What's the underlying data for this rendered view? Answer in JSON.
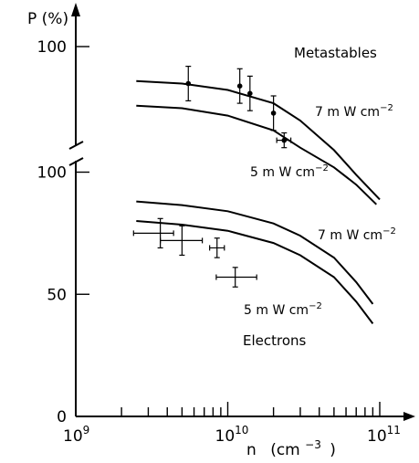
{
  "chart_data": {
    "type": "scatter",
    "xscale": "log",
    "ylabel": "P (%)",
    "xlabel_base": "n",
    "xlabel_unit": "(cm",
    "xlabel_exp": "−3",
    "xlabel_close": ")",
    "xlim": [
      1000000000.0,
      100000000000.0
    ],
    "x_ticks": [
      {
        "base": "10",
        "exp": "9",
        "value": 1000000000.0
      },
      {
        "base": "10",
        "exp": "10",
        "value": 10000000000.0
      },
      {
        "base": "10",
        "exp": "11",
        "value": 100000000000.0
      }
    ],
    "lower_panel": {
      "y_ticks": [
        {
          "label": "0",
          "value": 0
        },
        {
          "label": "50",
          "value": 50
        },
        {
          "label": "100",
          "value": 100
        }
      ],
      "ylim": [
        0,
        100
      ]
    },
    "upper_panel": {
      "y_ticks": [
        {
          "label": "100",
          "value": 100
        }
      ],
      "ylim": [
        72,
        107
      ],
      "axis_break": true
    },
    "panels": [
      {
        "name": "Metastables",
        "panel": "upper",
        "points": [
          {
            "x": 5500000000.0,
            "y": 92.5,
            "yerr": 3.5
          },
          {
            "x": 12000000000.0,
            "y": 92,
            "yerr": 3.5
          },
          {
            "x": 14000000000.0,
            "y": 90.5,
            "yerr": 3.5
          },
          {
            "x": 20000000000.0,
            "y": 86.5,
            "yerr": 3.5
          },
          {
            "x": 23500000000.0,
            "y": 81,
            "yerr": 1.5,
            "xerr": [
              21000000000.0,
              26000000000.0
            ]
          }
        ],
        "curves": [
          {
            "label_pre": "7 m W cm",
            "label_exp": "−2",
            "x": [
              2500000000.0,
              5000000000.0,
              10000000000.0,
              20000000000.0,
              30000000000.0,
              50000000000.0,
              70000000000.0,
              100000000000.0
            ],
            "y": [
              93,
              92.5,
              91.2,
              88.5,
              85,
              79,
              74,
              69
            ]
          },
          {
            "label_pre": "5 m W cm",
            "label_exp": "−2",
            "x": [
              2500000000.0,
              5000000000.0,
              10000000000.0,
              20000000000.0,
              30000000000.0,
              50000000000.0,
              70000000000.0,
              95000000000.0
            ],
            "y": [
              88,
              87.5,
              86,
              83,
              79.5,
              75.5,
              72,
              68
            ]
          }
        ]
      },
      {
        "name": "Electrons",
        "panel": "lower",
        "points": [
          {
            "x": 3600000000.0,
            "y": 75,
            "xerr": [
              2400000000.0,
              4400000000.0
            ],
            "yerr": 6
          },
          {
            "x": 5000000000.0,
            "y": 72,
            "xerr": [
              3600000000.0,
              6800000000.0
            ],
            "yerr": 6
          },
          {
            "x": 8500000000.0,
            "y": 69,
            "xerr": [
              7600000000.0,
              9500000000.0
            ],
            "yerr": 4
          },
          {
            "x": 11200000000.0,
            "y": 57,
            "xerr": [
              8400000000.0,
              15500000000.0
            ],
            "yerr": 4
          }
        ],
        "curves": [
          {
            "label_pre": "7 m W cm",
            "label_exp": "−2",
            "x": [
              2500000000.0,
              5000000000.0,
              10000000000.0,
              20000000000.0,
              30000000000.0,
              50000000000.0,
              70000000000.0,
              90000000000.0
            ],
            "y": [
              88,
              86.5,
              84,
              79,
              74,
              65,
              55,
              46
            ]
          },
          {
            "label_pre": "5 m W cm",
            "label_exp": "−2",
            "x": [
              2500000000.0,
              5000000000.0,
              10000000000.0,
              20000000000.0,
              30000000000.0,
              50000000000.0,
              70000000000.0,
              90000000000.0
            ],
            "y": [
              80,
              78.5,
              76,
              71,
              66,
              57,
              47,
              38
            ]
          }
        ]
      }
    ]
  }
}
